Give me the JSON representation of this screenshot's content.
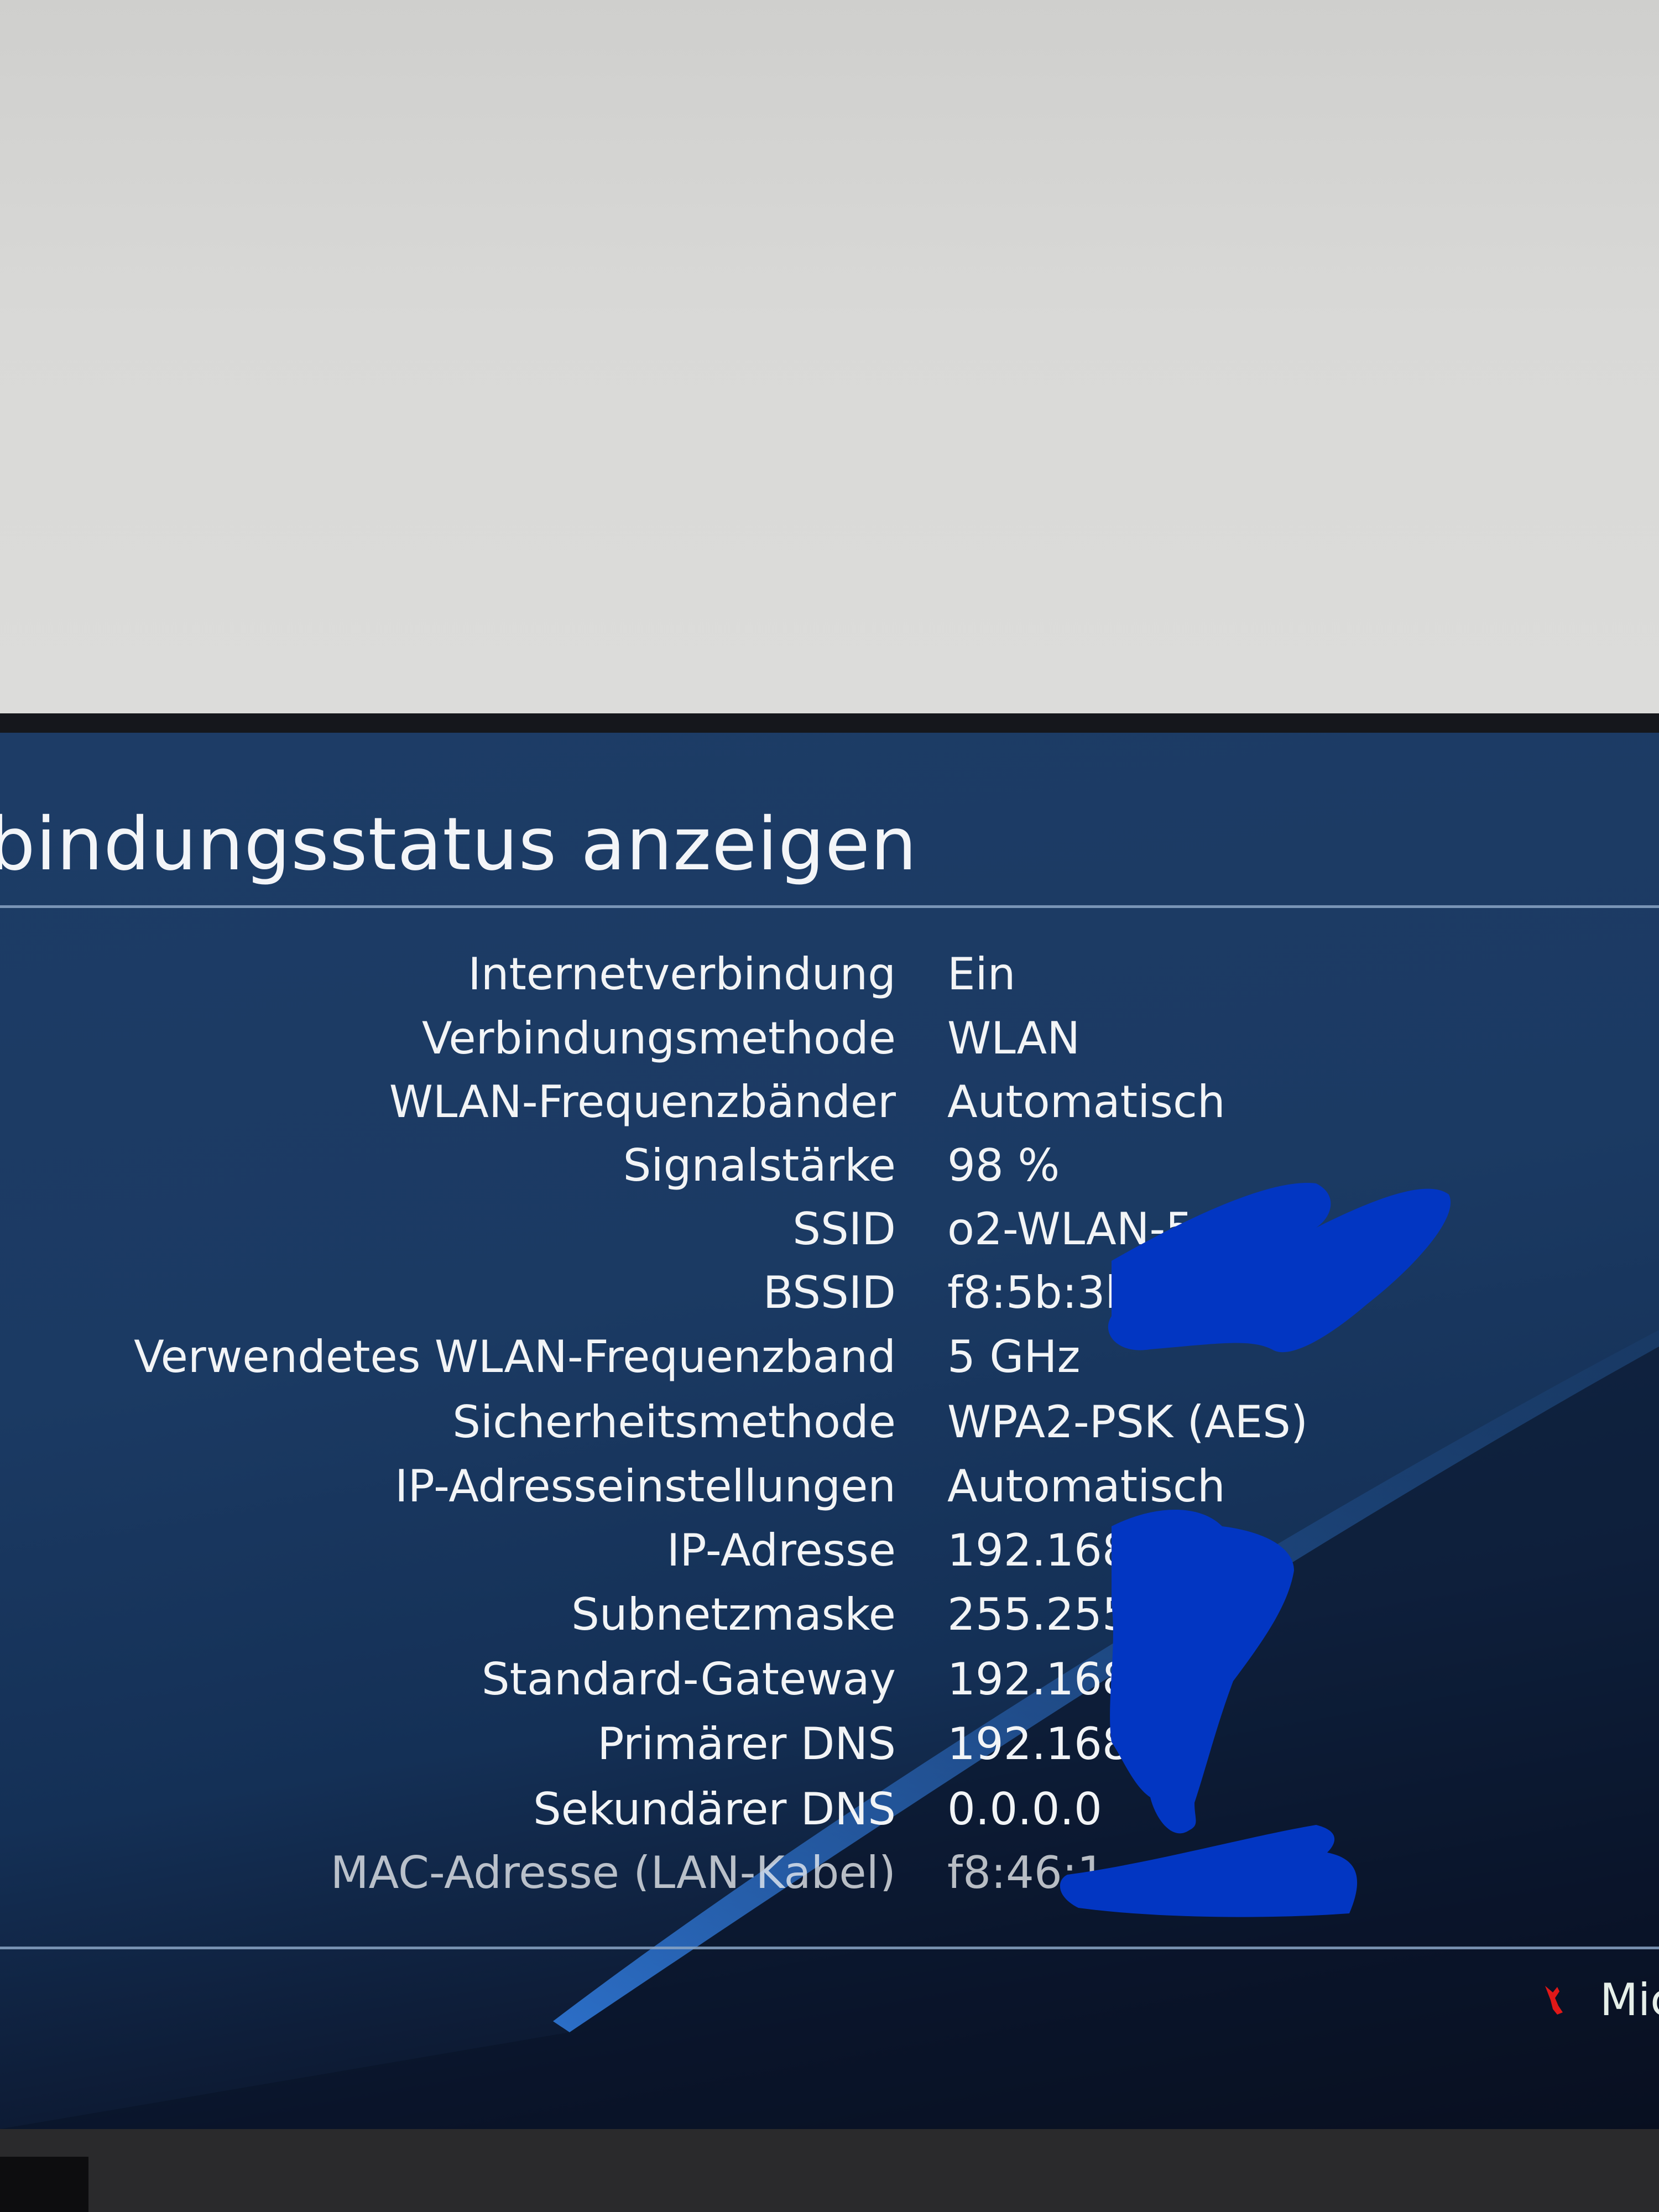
{
  "header": {
    "title": "bindungsstatus anzeigen"
  },
  "rows": [
    {
      "label": "Internetverbindung",
      "value": "Ein"
    },
    {
      "label": "Verbindungsmethode",
      "value": "WLAN"
    },
    {
      "label": "WLAN-Frequenzbänder",
      "value": "Automatisch"
    },
    {
      "label": "Signalstärke",
      "value": "98 %"
    },
    {
      "label": "SSID",
      "value": "o2-WLAN-5"
    },
    {
      "label": "BSSID",
      "value": "f8:5b:3b"
    },
    {
      "label": "Verwendetes WLAN-Frequenzband",
      "value": "5 GHz"
    },
    {
      "label": "Sicherheitsmethode",
      "value": "WPA2-PSK (AES)"
    },
    {
      "label": "IP-Adresseinstellungen",
      "value": "Automatisch"
    },
    {
      "label": "IP-Adresse",
      "value": "192.168.1."
    },
    {
      "label": "Subnetzmaske",
      "value": "255.255.2"
    },
    {
      "label": "Standard-Gateway",
      "value": "192.168.1"
    },
    {
      "label": "Primärer DNS",
      "value": "192.168."
    },
    {
      "label": "Sekundärer DNS",
      "value": "0.0.0.0"
    },
    {
      "label": "MAC-Adresse (LAN-Kabel)",
      "value": "f8:46:1"
    }
  ],
  "footer": {
    "icon": "controller-button-icon",
    "label": "Mic"
  },
  "colors": {
    "screen_bg": "#1b3a63",
    "text": "#f2f4f6",
    "redaction": "#0033c0",
    "footer_icon": "#e01818"
  }
}
